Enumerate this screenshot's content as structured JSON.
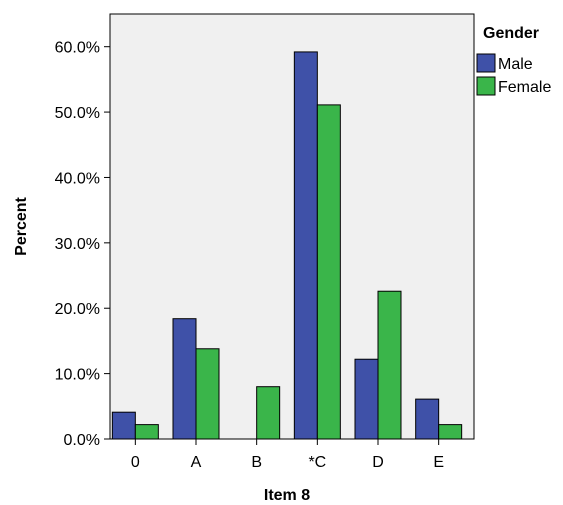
{
  "chart_data": {
    "type": "bar",
    "xlabel": "Item 8",
    "ylabel": "Percent",
    "categories": [
      "0",
      "A",
      "B",
      "*C",
      "D",
      "E"
    ],
    "series": [
      {
        "name": "Male",
        "color": "#3f51a8",
        "values": [
          4.1,
          18.4,
          0.0,
          59.2,
          12.2,
          6.1
        ]
      },
      {
        "name": "Female",
        "color": "#3ab54a",
        "values": [
          2.2,
          13.8,
          8.0,
          51.1,
          22.6,
          2.2
        ]
      }
    ],
    "ylim": [
      0,
      65
    ],
    "yticks": [
      0,
      10,
      20,
      30,
      40,
      50,
      60
    ],
    "ytick_labels": [
      "0.0%",
      "10.0%",
      "20.0%",
      "30.0%",
      "40.0%",
      "50.0%",
      "60.0%"
    ],
    "legend": {
      "title": "Gender",
      "position": "top-right"
    },
    "plot_background": "#f0f0f0",
    "grid": false
  }
}
